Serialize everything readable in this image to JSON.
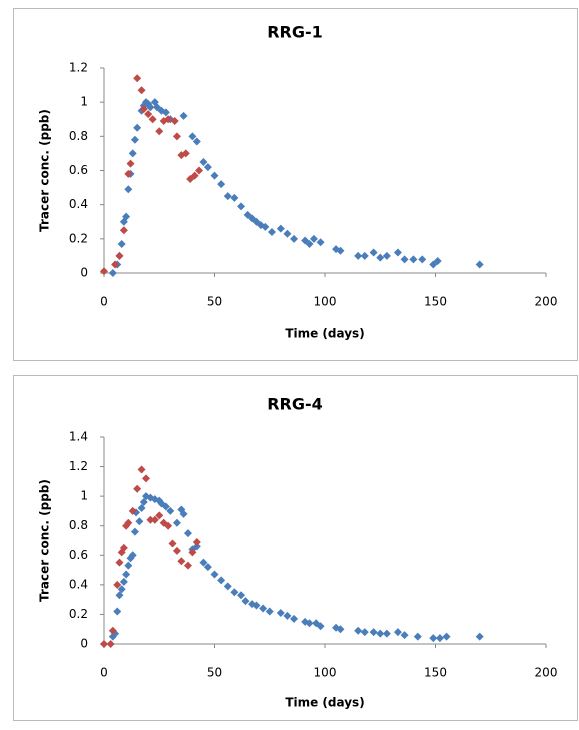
{
  "chart_data": [
    {
      "type": "scatter",
      "title": "RRG-1",
      "x_label": "Time (days)",
      "y_label": "Tracer conc. (ppb)",
      "xlim": [
        0,
        200
      ],
      "xticks": [
        0,
        50,
        100,
        150,
        200
      ],
      "ylim": [
        0,
        1.2
      ],
      "yticks": [
        0,
        0.2,
        0.4,
        0.6,
        0.8,
        1,
        1.2
      ],
      "series": [
        {
          "color": "#4a7ebb",
          "x": [
            4,
            6,
            7,
            8,
            9,
            10,
            11,
            12,
            13,
            14,
            15,
            17,
            18,
            19,
            20,
            21,
            23,
            24,
            26,
            28,
            30,
            36,
            40,
            42,
            45,
            47,
            50,
            53,
            56,
            59,
            62,
            65,
            67,
            69,
            71,
            73,
            76,
            80,
            83,
            86,
            91,
            93,
            95,
            98,
            105,
            107,
            115,
            118,
            122,
            125,
            128,
            133,
            136,
            140,
            144,
            149,
            151,
            170
          ],
          "values": [
            0.0,
            0.05,
            0.1,
            0.17,
            0.3,
            0.33,
            0.49,
            0.58,
            0.7,
            0.78,
            0.85,
            0.95,
            0.98,
            1.0,
            0.99,
            0.97,
            1.0,
            0.97,
            0.95,
            0.94,
            0.9,
            0.92,
            0.8,
            0.77,
            0.65,
            0.62,
            0.57,
            0.52,
            0.45,
            0.44,
            0.39,
            0.34,
            0.32,
            0.3,
            0.28,
            0.27,
            0.24,
            0.26,
            0.23,
            0.2,
            0.19,
            0.17,
            0.2,
            0.18,
            0.14,
            0.13,
            0.1,
            0.1,
            0.12,
            0.09,
            0.1,
            0.12,
            0.08,
            0.08,
            0.08,
            0.05,
            0.07,
            0.05
          ]
        },
        {
          "color": "#be4b48",
          "x": [
            0,
            5,
            7,
            9,
            11,
            12,
            15,
            17,
            18,
            20,
            22,
            25,
            27,
            29,
            32,
            33,
            35,
            37,
            39,
            41,
            43
          ],
          "values": [
            0.01,
            0.05,
            0.1,
            0.25,
            0.58,
            0.64,
            1.14,
            1.07,
            0.96,
            0.93,
            0.9,
            0.83,
            0.89,
            0.9,
            0.89,
            0.8,
            0.69,
            0.7,
            0.55,
            0.57,
            0.6
          ]
        }
      ]
    },
    {
      "type": "scatter",
      "title": "RRG-4",
      "x_label": "Time (days)",
      "y_label": "Tracer conc. (ppb)",
      "xlim": [
        0,
        200
      ],
      "xticks": [
        0,
        50,
        100,
        150,
        200
      ],
      "ylim": [
        0,
        1.4
      ],
      "yticks": [
        0,
        0.2,
        0.4,
        0.6,
        0.8,
        1,
        1.2,
        1.4
      ],
      "series": [
        {
          "color": "#4a7ebb",
          "x": [
            4,
            5,
            6,
            7,
            8,
            9,
            10,
            11,
            12,
            13,
            14,
            14.5,
            16,
            17,
            18,
            19,
            21,
            23,
            25,
            26,
            28,
            30,
            33,
            35,
            36,
            38,
            40,
            42,
            45,
            47,
            50,
            53,
            56,
            59,
            62,
            64,
            67,
            69,
            72,
            75,
            80,
            83,
            86,
            91,
            93,
            96,
            98,
            105,
            107,
            115,
            118,
            122,
            125,
            128,
            133,
            136,
            142,
            149,
            152,
            155,
            170
          ],
          "values": [
            0.05,
            0.07,
            0.22,
            0.33,
            0.37,
            0.42,
            0.47,
            0.53,
            0.58,
            0.6,
            0.76,
            0.89,
            0.83,
            0.92,
            0.96,
            1.0,
            0.99,
            0.98,
            0.97,
            0.95,
            0.93,
            0.9,
            0.82,
            0.91,
            0.88,
            0.75,
            0.64,
            0.66,
            0.55,
            0.52,
            0.47,
            0.43,
            0.39,
            0.35,
            0.33,
            0.29,
            0.27,
            0.26,
            0.24,
            0.22,
            0.21,
            0.19,
            0.17,
            0.15,
            0.14,
            0.14,
            0.12,
            0.11,
            0.1,
            0.09,
            0.08,
            0.08,
            0.07,
            0.07,
            0.08,
            0.06,
            0.05,
            0.04,
            0.04,
            0.05,
            0.05
          ]
        },
        {
          "color": "#be4b48",
          "x": [
            0,
            3,
            4,
            6,
            7,
            8,
            9,
            10,
            11,
            13,
            15,
            17,
            19,
            21,
            23,
            25,
            27,
            29,
            31,
            33,
            35,
            38,
            40,
            42
          ],
          "values": [
            0.0,
            0.0,
            0.09,
            0.4,
            0.55,
            0.62,
            0.65,
            0.8,
            0.82,
            0.9,
            1.05,
            1.18,
            1.12,
            0.84,
            0.84,
            0.87,
            0.82,
            0.8,
            0.68,
            0.63,
            0.56,
            0.53,
            0.62,
            0.69
          ]
        }
      ]
    }
  ]
}
